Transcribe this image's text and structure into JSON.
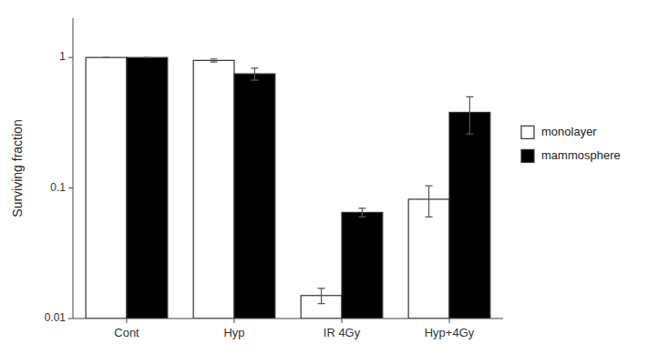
{
  "chart_data": {
    "type": "bar",
    "categories": [
      "Cont",
      "Hyp",
      "IR 4Gy",
      "Hyp+4Gy"
    ],
    "series": [
      {
        "name": "monolayer",
        "color": "#ffffff",
        "values": [
          1.0,
          0.95,
          0.015,
          0.082
        ],
        "errors": [
          0.0,
          0.025,
          0.002,
          0.022
        ]
      },
      {
        "name": "mammosphere",
        "color": "#000000",
        "values": [
          1.0,
          0.75,
          0.065,
          0.38
        ],
        "errors": [
          0.0,
          0.08,
          0.005,
          0.12
        ]
      }
    ],
    "ylabel": "Surviving fraction",
    "ylim": [
      0.01,
      2.0
    ],
    "yticks": [
      0.01,
      0.1,
      1
    ],
    "log": "y",
    "grid": false,
    "legend": "right"
  }
}
